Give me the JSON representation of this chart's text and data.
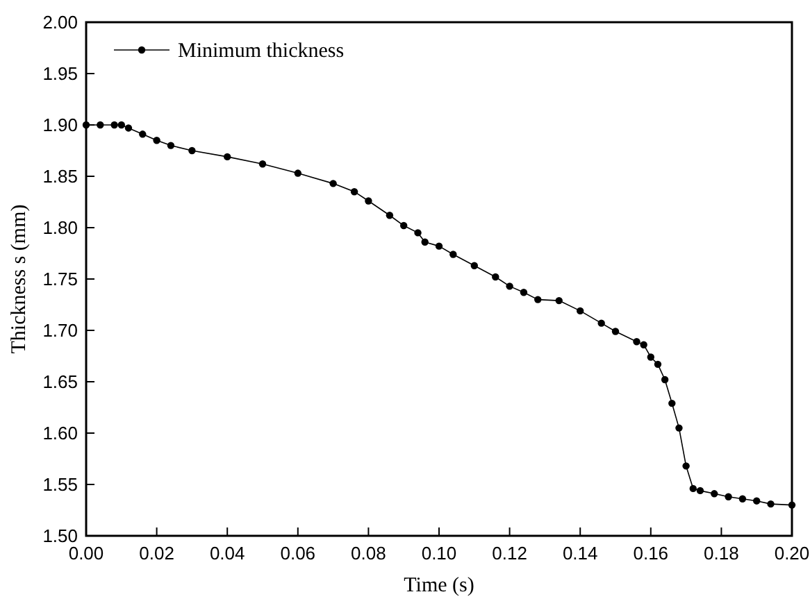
{
  "chart_data": {
    "type": "line",
    "xlabel": "Time (s)",
    "ylabel": "Thickness s (mm)",
    "xlim": [
      0,
      0.2
    ],
    "xticks": [
      {
        "value": 0,
        "label": "0.00"
      },
      0.02,
      0.04,
      0.06,
      0.08,
      {
        "value": 0.1,
        "label": "0.10"
      },
      0.12,
      0.14,
      0.16,
      0.18,
      {
        "value": 0.2,
        "label": "0.20"
      }
    ],
    "ylim": [
      1.5,
      2
    ],
    "yticks": [
      {
        "value": 1.5,
        "label": "1.50"
      },
      1.55,
      {
        "value": 1.6,
        "label": "1.60"
      },
      1.65,
      {
        "value": 1.7,
        "label": "1.70"
      },
      1.75,
      {
        "value": 1.8,
        "label": "1.80"
      },
      1.85,
      {
        "value": 1.9,
        "label": "1.90"
      },
      1.95,
      {
        "value": 2,
        "label": "2.00"
      }
    ],
    "x": [
      0,
      0.004,
      0.008,
      0.01,
      0.012,
      0.016,
      0.02,
      0.024,
      0.03,
      0.04,
      0.05,
      0.06,
      0.07,
      0.076,
      0.08,
      0.086,
      0.09,
      0.094,
      0.096,
      0.1,
      0.104,
      0.11,
      0.116,
      0.12,
      0.124,
      0.128,
      0.134,
      0.14,
      0.146,
      0.15,
      0.156,
      0.158,
      0.16,
      0.162,
      0.164,
      0.166,
      0.168,
      0.17,
      0.172,
      0.174,
      0.178,
      0.182,
      0.186,
      0.19,
      0.194,
      0.2
    ],
    "series": [
      {
        "name": "Minimum thickness",
        "color": "#000000",
        "values": [
          1.9,
          1.9,
          1.9,
          1.9,
          1.897,
          1.891,
          1.885,
          1.88,
          1.875,
          1.869,
          1.862,
          1.853,
          1.843,
          1.835,
          1.826,
          1.812,
          1.802,
          1.795,
          1.786,
          1.782,
          1.774,
          1.763,
          1.752,
          1.743,
          1.737,
          1.73,
          1.729,
          1.719,
          1.707,
          1.699,
          1.689,
          1.686,
          1.674,
          1.667,
          1.652,
          1.629,
          1.605,
          1.568,
          1.546,
          1.544,
          1.541,
          1.538,
          1.536,
          1.534,
          1.531,
          1.53
        ]
      }
    ],
    "marker": "circle",
    "legend": "top left",
    "grid": false
  }
}
